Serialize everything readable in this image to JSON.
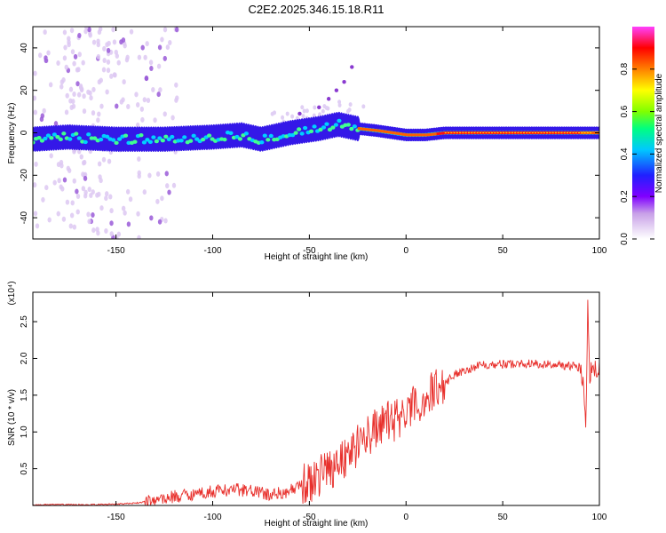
{
  "figure": {
    "title": "C2E2.2025.346.15.18.R11"
  },
  "chart_data": [
    {
      "type": "heatmap",
      "xlabel": "Height of straight line (km)",
      "ylabel": "Frequency (Hz)",
      "xlim": [
        -193,
        100
      ],
      "ylim": [
        -50,
        50
      ],
      "x_ticks": [
        -150,
        -100,
        -50,
        0,
        50,
        100
      ],
      "y_ticks": [
        -40,
        -20,
        0,
        20,
        40
      ],
      "colorbar": {
        "label": "Normalized spectral amplitude",
        "range": [
          0.0,
          1.0
        ],
        "ticks": [
          0.0,
          0.2,
          0.4,
          0.6,
          0.8
        ],
        "tick_labels": [
          "0.0",
          "0.2",
          "0.4",
          "0.6",
          "0.8"
        ],
        "colors": [
          "#ffffff",
          "#e8d8f5",
          "#c8a0e8",
          "#8000ff",
          "#2020ff",
          "#00c8ff",
          "#00ff80",
          "#80ff00",
          "#ffff00",
          "#ff8000",
          "#ff0000",
          "#ff40ff"
        ]
      },
      "ridge": {
        "description_points_x": [
          -193,
          -175,
          -150,
          -125,
          -100,
          -85,
          -75,
          -60,
          -45,
          -35,
          -25,
          -15,
          0,
          10,
          20,
          40,
          60,
          80,
          95,
          100
        ],
        "frequency_center": [
          -3,
          -2,
          -3,
          -3,
          -2,
          -1,
          -3,
          0,
          2,
          4,
          2,
          1,
          -1,
          -1,
          0,
          0,
          0,
          0,
          0,
          0
        ]
      }
    },
    {
      "type": "line",
      "xlabel": "Height of straight line (km)",
      "ylabel": "SNR (10 * v/v)",
      "y_multiplier": "(x10⁴)",
      "xlim": [
        -193,
        100
      ],
      "ylim": [
        0,
        2.9
      ],
      "x_ticks": [
        -150,
        -100,
        -50,
        0,
        50,
        100
      ],
      "y_ticks": [
        0.5,
        1.0,
        1.5,
        2.0,
        2.5
      ],
      "y_tick_labels": [
        "0.5",
        "1.0",
        "1.5",
        "2.0",
        "2.5"
      ],
      "line_color": "#e8302c",
      "series": [
        {
          "name": "SNR",
          "x": [
            -193,
            -180,
            -160,
            -140,
            -130,
            -120,
            -110,
            -100,
            -90,
            -80,
            -70,
            -60,
            -50,
            -45,
            -40,
            -35,
            -30,
            -25,
            -20,
            -15,
            -10,
            -5,
            0,
            5,
            10,
            15,
            20,
            25,
            30,
            35,
            40,
            50,
            60,
            70,
            80,
            85,
            90,
            92,
            93,
            94,
            95,
            96,
            97,
            100
          ],
          "y": [
            0.01,
            0.01,
            0.01,
            0.03,
            0.07,
            0.12,
            0.16,
            0.19,
            0.22,
            0.2,
            0.14,
            0.2,
            0.3,
            0.42,
            0.5,
            0.6,
            0.7,
            0.82,
            0.95,
            1.05,
            1.12,
            1.18,
            1.25,
            1.35,
            1.45,
            1.58,
            1.66,
            1.78,
            1.84,
            1.88,
            1.92,
            1.92,
            1.93,
            1.92,
            1.91,
            1.9,
            1.88,
            1.6,
            1.15,
            2.8,
            1.75,
            1.9,
            1.85,
            1.88
          ]
        }
      ]
    }
  ]
}
